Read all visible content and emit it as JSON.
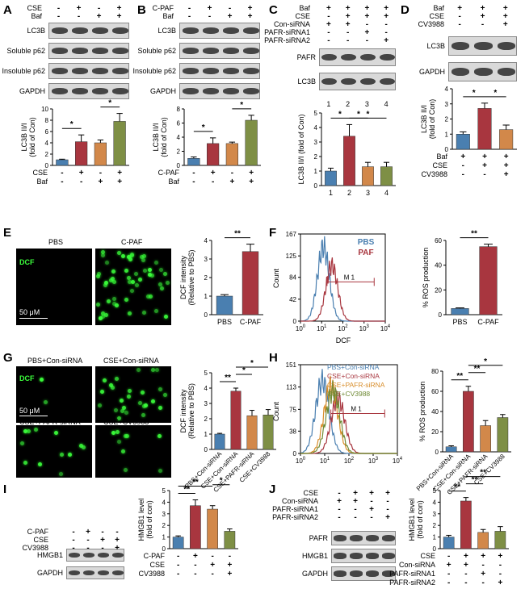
{
  "panels": {
    "A": {
      "label": "A",
      "cond": [
        {
          "name": "CSE",
          "vals": [
            "-",
            "+",
            "-",
            "+"
          ]
        },
        {
          "name": "Baf",
          "vals": [
            "-",
            "-",
            "+",
            "+"
          ]
        }
      ],
      "rows": [
        "LC3B",
        "Soluble p62",
        "Insoluble p62",
        "GAPDH"
      ],
      "ylabel": "LC3B II/I (fold of Con)"
    },
    "B": {
      "label": "B",
      "cond": [
        {
          "name": "C-PAF",
          "vals": [
            "-",
            "+",
            "-",
            "+"
          ]
        },
        {
          "name": "Baf",
          "vals": [
            "-",
            "-",
            "+",
            "+"
          ]
        }
      ],
      "rows": [
        "LC3B",
        "Soluble p62",
        "Insoluble p62",
        "GAPDH"
      ],
      "ylabel": "LC3B II/I (fold of Con)"
    },
    "C": {
      "label": "C",
      "cond": [
        {
          "name": "Baf",
          "vals": [
            "+",
            "+",
            "+",
            "+"
          ]
        },
        {
          "name": "CSE",
          "vals": [
            "-",
            "+",
            "+",
            "+"
          ]
        },
        {
          "name": "Con-siRNA",
          "vals": [
            "+",
            "+",
            "-",
            "-"
          ]
        },
        {
          "name": "PAFR-siRNA1",
          "vals": [
            "-",
            "-",
            "+",
            "-"
          ]
        },
        {
          "name": "PAFR-siRNA2",
          "vals": [
            "-",
            "-",
            "-",
            "+"
          ]
        }
      ],
      "rows": [
        "PAFR",
        "LC3B"
      ],
      "lanes": [
        "1",
        "2",
        "3",
        "4"
      ],
      "ylabel": "LC3B II/I (fold of Con)"
    },
    "D": {
      "label": "D",
      "cond": [
        {
          "name": "Baf",
          "vals": [
            "+",
            "+",
            "+"
          ]
        },
        {
          "name": "CSE",
          "vals": [
            "-",
            "+",
            "+"
          ]
        },
        {
          "name": "CV3988",
          "vals": [
            "-",
            "-",
            "+"
          ]
        }
      ],
      "rows": [
        "LC3B",
        "GAPDH"
      ],
      "ylabel": "LC3B II/I (fold of Con)"
    },
    "E": {
      "label": "E",
      "img_labels": [
        "PBS",
        "C-PAF"
      ],
      "stain": "DCF",
      "scale": "50 μM",
      "ylabel": "DCF intensity (Relative to PBS)"
    },
    "F": {
      "label": "F",
      "legend": [
        "PBS",
        "PAF"
      ],
      "marker": "M 1",
      "xlabel": "DCF",
      "ylabel": "Count",
      "bar_ylabel": "% ROS production"
    },
    "G": {
      "label": "G",
      "img_labels": [
        "PBS+Con-siRNA",
        "CSE+Con-siRNA",
        "CSE+PAFR-siRNA",
        "CSE+CV3988"
      ],
      "stain": "DCF",
      "scale": "50 μM",
      "ylabel": "DCF intensity (Relative to PBS)"
    },
    "H": {
      "label": "H",
      "legend": [
        "PBS+Con-siRNA",
        "CSE+Con-siRNA",
        "CSE+PAFR-siRNA",
        "CSE+CV3988"
      ],
      "marker": "M 1",
      "ylabel": "Count",
      "bar_ylabel": "% ROS production"
    },
    "I": {
      "label": "I",
      "cond": [
        {
          "name": "C-PAF",
          "vals": [
            "-",
            "+",
            "-",
            "-"
          ]
        },
        {
          "name": "CSE",
          "vals": [
            "-",
            "-",
            "+",
            "+"
          ]
        },
        {
          "name": "CV3988",
          "vals": [
            "-",
            "-",
            "-",
            "+"
          ]
        }
      ],
      "rows": [
        "HMGB1",
        "GAPDH"
      ],
      "ylabel": "HMGB1 level (fold of con)"
    },
    "J": {
      "label": "J",
      "cond": [
        {
          "name": "CSE",
          "vals": [
            "-",
            "+",
            "+",
            "+"
          ]
        },
        {
          "name": "Con-siRNA",
          "vals": [
            "+",
            "+",
            "-",
            "-"
          ]
        },
        {
          "name": "PAFR-siRNA1",
          "vals": [
            "-",
            "-",
            "+",
            "-"
          ]
        },
        {
          "name": "PAFR-siRNA2",
          "vals": [
            "-",
            "-",
            "-",
            "+"
          ]
        }
      ],
      "rows": [
        "PAFR",
        "HMGB1",
        "GAPDH"
      ],
      "ylabel": "HMGB1 level (fold of con)"
    }
  },
  "colors": {
    "blue": "#4a7fb0",
    "red": "#a8363f",
    "orange": "#d2884a",
    "green": "#7e8f45"
  },
  "chart_data": [
    {
      "id": "A",
      "type": "bar",
      "values": [
        1,
        4.2,
        4.0,
        7.8
      ],
      "errors": [
        0.1,
        1.2,
        0.5,
        1.4
      ],
      "ylim": [
        0,
        10
      ],
      "yticks": [
        0,
        2,
        4,
        6,
        8,
        10
      ],
      "sig": [
        {
          "a": 0,
          "b": 1,
          "label": "*"
        },
        {
          "a": 2,
          "b": 3,
          "label": "*"
        }
      ]
    },
    {
      "id": "B",
      "type": "bar",
      "values": [
        1,
        3.1,
        3.1,
        6.4
      ],
      "errors": [
        0.2,
        0.8,
        0.2,
        0.7
      ],
      "ylim": [
        0,
        8
      ],
      "yticks": [
        0,
        2,
        4,
        6,
        8
      ],
      "sig": [
        {
          "a": 0,
          "b": 1,
          "label": "*"
        },
        {
          "a": 2,
          "b": 3,
          "label": "*"
        }
      ]
    },
    {
      "id": "C",
      "type": "bar",
      "categories": [
        "1",
        "2",
        "3",
        "4"
      ],
      "values": [
        1,
        3.4,
        1.3,
        1.3
      ],
      "errors": [
        0.2,
        0.8,
        0.3,
        0.3
      ],
      "ylim": [
        0,
        5
      ],
      "yticks": [
        0,
        1,
        2,
        3,
        4,
        5
      ],
      "sig": [
        {
          "a": 0,
          "b": 1,
          "label": "*"
        },
        {
          "a": 1,
          "b": 2,
          "label": "*"
        },
        {
          "a": 1,
          "b": 3,
          "label": "*"
        }
      ]
    },
    {
      "id": "D",
      "type": "bar",
      "values": [
        1,
        2.7,
        1.3
      ],
      "errors": [
        0.15,
        0.35,
        0.3
      ],
      "ylim": [
        0,
        4
      ],
      "yticks": [
        0,
        1,
        2,
        3,
        4
      ],
      "sig": [
        {
          "a": 0,
          "b": 1,
          "label": "*"
        },
        {
          "a": 1,
          "b": 2,
          "label": "*"
        }
      ]
    },
    {
      "id": "E",
      "type": "bar",
      "categories": [
        "PBS",
        "C-PAF"
      ],
      "values": [
        1,
        3.4
      ],
      "errors": [
        0.08,
        0.4
      ],
      "ylim": [
        0,
        4
      ],
      "yticks": [
        0,
        1,
        2,
        3,
        4
      ],
      "sig": [
        {
          "a": 0,
          "b": 1,
          "label": "**"
        }
      ]
    },
    {
      "id": "F",
      "type": "bar",
      "categories": [
        "PBS",
        "C-PAF"
      ],
      "values": [
        5,
        55
      ],
      "errors": [
        0.5,
        2
      ],
      "ylim": [
        0,
        60
      ],
      "yticks": [
        0,
        20,
        40,
        60
      ],
      "sig": [
        {
          "a": 0,
          "b": 1,
          "label": "**"
        }
      ]
    },
    {
      "id": "G",
      "type": "bar",
      "categories": [
        "PBS+Con-siRNA",
        "CSE+Con-siRNA",
        "CSE+PAFR-siRNA",
        "CSE+CV3988"
      ],
      "values": [
        1,
        3.8,
        2.2,
        2.25
      ],
      "errors": [
        0.05,
        0.2,
        0.35,
        0.35
      ],
      "ylim": [
        0,
        5
      ],
      "yticks": [
        0,
        1,
        2,
        3,
        4,
        5
      ],
      "sig": [
        {
          "a": 0,
          "b": 1,
          "label": "**"
        },
        {
          "a": 1,
          "b": 2,
          "label": "*"
        },
        {
          "a": 1,
          "b": 3,
          "label": "*"
        }
      ]
    },
    {
      "id": "H",
      "type": "bar",
      "categories": [
        "PBS+Con-siRNA",
        "CSE+Con-siRNA",
        "CSE+PAFR-siRNA",
        "CSE+CV3988"
      ],
      "values": [
        5,
        60,
        26,
        34
      ],
      "errors": [
        1,
        5,
        5,
        3
      ],
      "ylim": [
        0,
        80
      ],
      "yticks": [
        0,
        20,
        40,
        60,
        80
      ],
      "sig": [
        {
          "a": 0,
          "b": 1,
          "label": "**"
        },
        {
          "a": 1,
          "b": 2,
          "label": "**"
        },
        {
          "a": 1,
          "b": 3,
          "label": "*"
        }
      ]
    },
    {
      "id": "I",
      "type": "bar",
      "values": [
        1,
        3.7,
        3.4,
        1.5
      ],
      "errors": [
        0.1,
        0.5,
        0.3,
        0.2
      ],
      "ylim": [
        0,
        5
      ],
      "yticks": [
        0,
        1,
        2,
        3,
        4,
        5
      ],
      "sig": [
        {
          "a": 0,
          "b": 1,
          "label": "**"
        },
        {
          "a": 0,
          "b": 2,
          "label": "**"
        },
        {
          "a": 2,
          "b": 3,
          "label": "*"
        }
      ]
    },
    {
      "id": "J",
      "type": "bar",
      "values": [
        1,
        4.1,
        1.4,
        1.5
      ],
      "errors": [
        0.15,
        0.3,
        0.25,
        0.4
      ],
      "ylim": [
        0,
        5
      ],
      "yticks": [
        0,
        1,
        2,
        3,
        4,
        5
      ],
      "sig": [
        {
          "a": 0,
          "b": 1,
          "label": "**"
        },
        {
          "a": 1,
          "b": 2,
          "label": "**"
        },
        {
          "a": 1,
          "b": 3,
          "label": "**"
        }
      ]
    },
    {
      "id": "F-hist",
      "type": "line",
      "xscale": "log",
      "xlim": [
        1,
        10000
      ],
      "xticks": [
        "10",
        "10",
        "10",
        "10",
        "10"
      ],
      "ylim": [
        0,
        167
      ],
      "yticks": [
        0,
        42,
        84,
        125,
        167
      ],
      "series": [
        {
          "name": "PBS",
          "peak": 12,
          "height": 167
        },
        {
          "name": "PAF",
          "peak": 30,
          "height": 125
        }
      ]
    },
    {
      "id": "H-hist",
      "type": "line",
      "xscale": "log",
      "xlim": [
        1,
        10000
      ],
      "xticks": [
        "10",
        "10",
        "10",
        "10",
        "10"
      ],
      "ylim": [
        0,
        151
      ],
      "yticks": [
        0,
        38,
        75,
        113,
        151
      ],
      "series": [
        {
          "name": "PBS+Con-siRNA",
          "peak": 8,
          "height": 145
        },
        {
          "name": "CSE+Con-siRNA",
          "peak": 35,
          "height": 110
        },
        {
          "name": "CSE+PAFR-siRNA",
          "peak": 18,
          "height": 135
        },
        {
          "name": "CSE+CV3988",
          "peak": 22,
          "height": 125
        }
      ]
    }
  ]
}
